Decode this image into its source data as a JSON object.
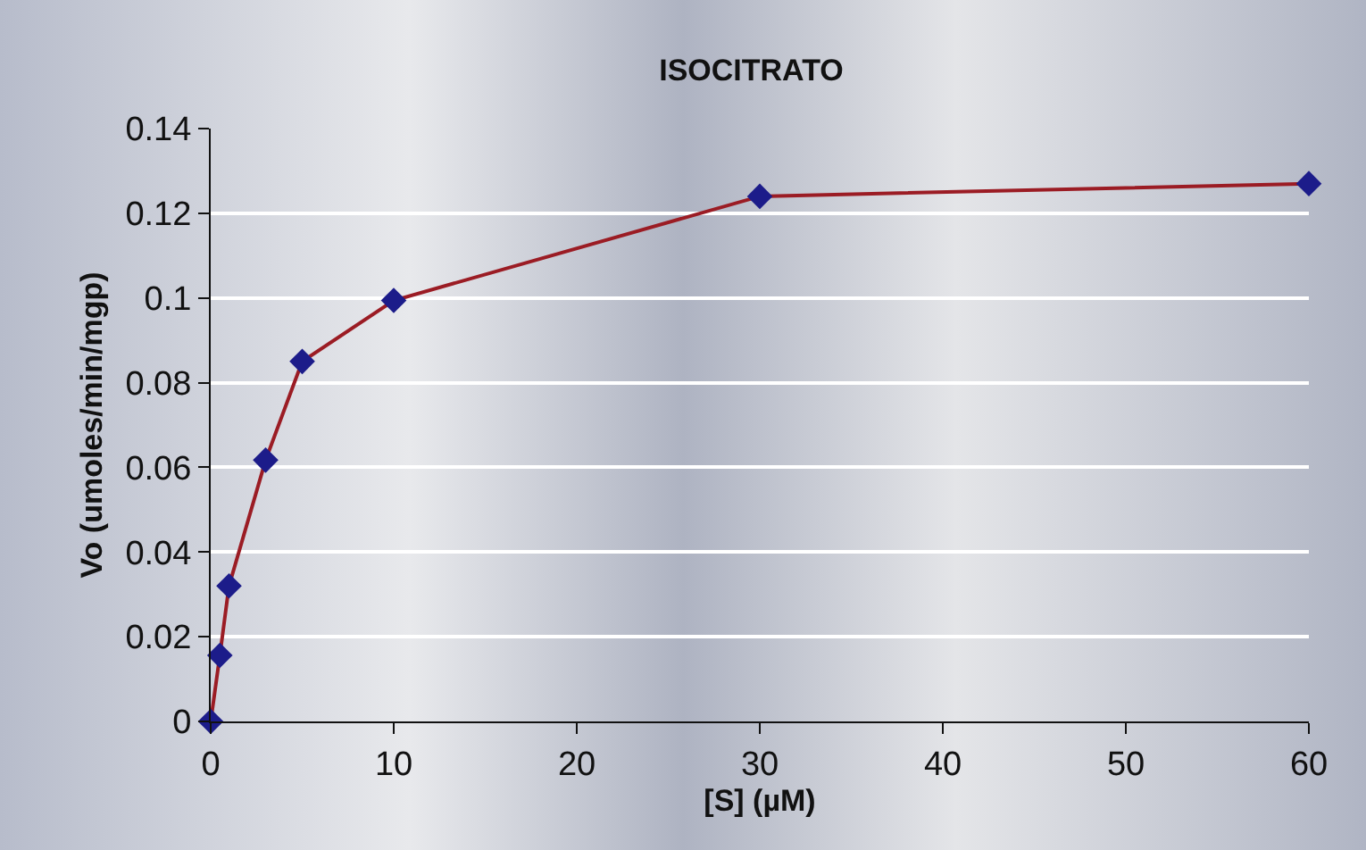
{
  "chart_data": {
    "type": "line",
    "title": "ISOCITRATO",
    "xlabel": "[S] (µM)",
    "ylabel": "Vo (umoles/min/mgp)",
    "x": [
      0,
      0.5,
      1,
      3,
      5,
      10,
      30,
      60
    ],
    "series": [
      {
        "color": "#9b1c24",
        "colors": [
          "#1c1c8a",
          "#1c1c8a",
          "#1c1c8a",
          "#1c1c8a",
          "#1c1c8a",
          "#1c1c8a",
          "#1c1c8a",
          "#1c1c8a"
        ],
        "values": [
          0,
          0.0156,
          0.032,
          0.0617,
          0.085,
          0.0994,
          0.124,
          0.127
        ]
      }
    ],
    "marker": "diamond",
    "line_style": "solid",
    "xlim": [
      0,
      60
    ],
    "xticks": [
      0,
      10,
      20,
      30,
      40,
      50,
      60
    ],
    "ylim": [
      0,
      0.14
    ],
    "yticks": [
      0,
      {
        "value": 0.02,
        "label": "0.02"
      },
      {
        "value": 0.04,
        "label": "0.04"
      },
      {
        "value": 0.06,
        "label": "0.06"
      },
      {
        "value": 0.08,
        "label": "0.08"
      },
      {
        "value": 0.1,
        "label": "0.1"
      },
      {
        "value": 0.12,
        "label": "0.12"
      },
      {
        "value": 0.14,
        "label": "0.14"
      }
    ],
    "grid": "y"
  }
}
